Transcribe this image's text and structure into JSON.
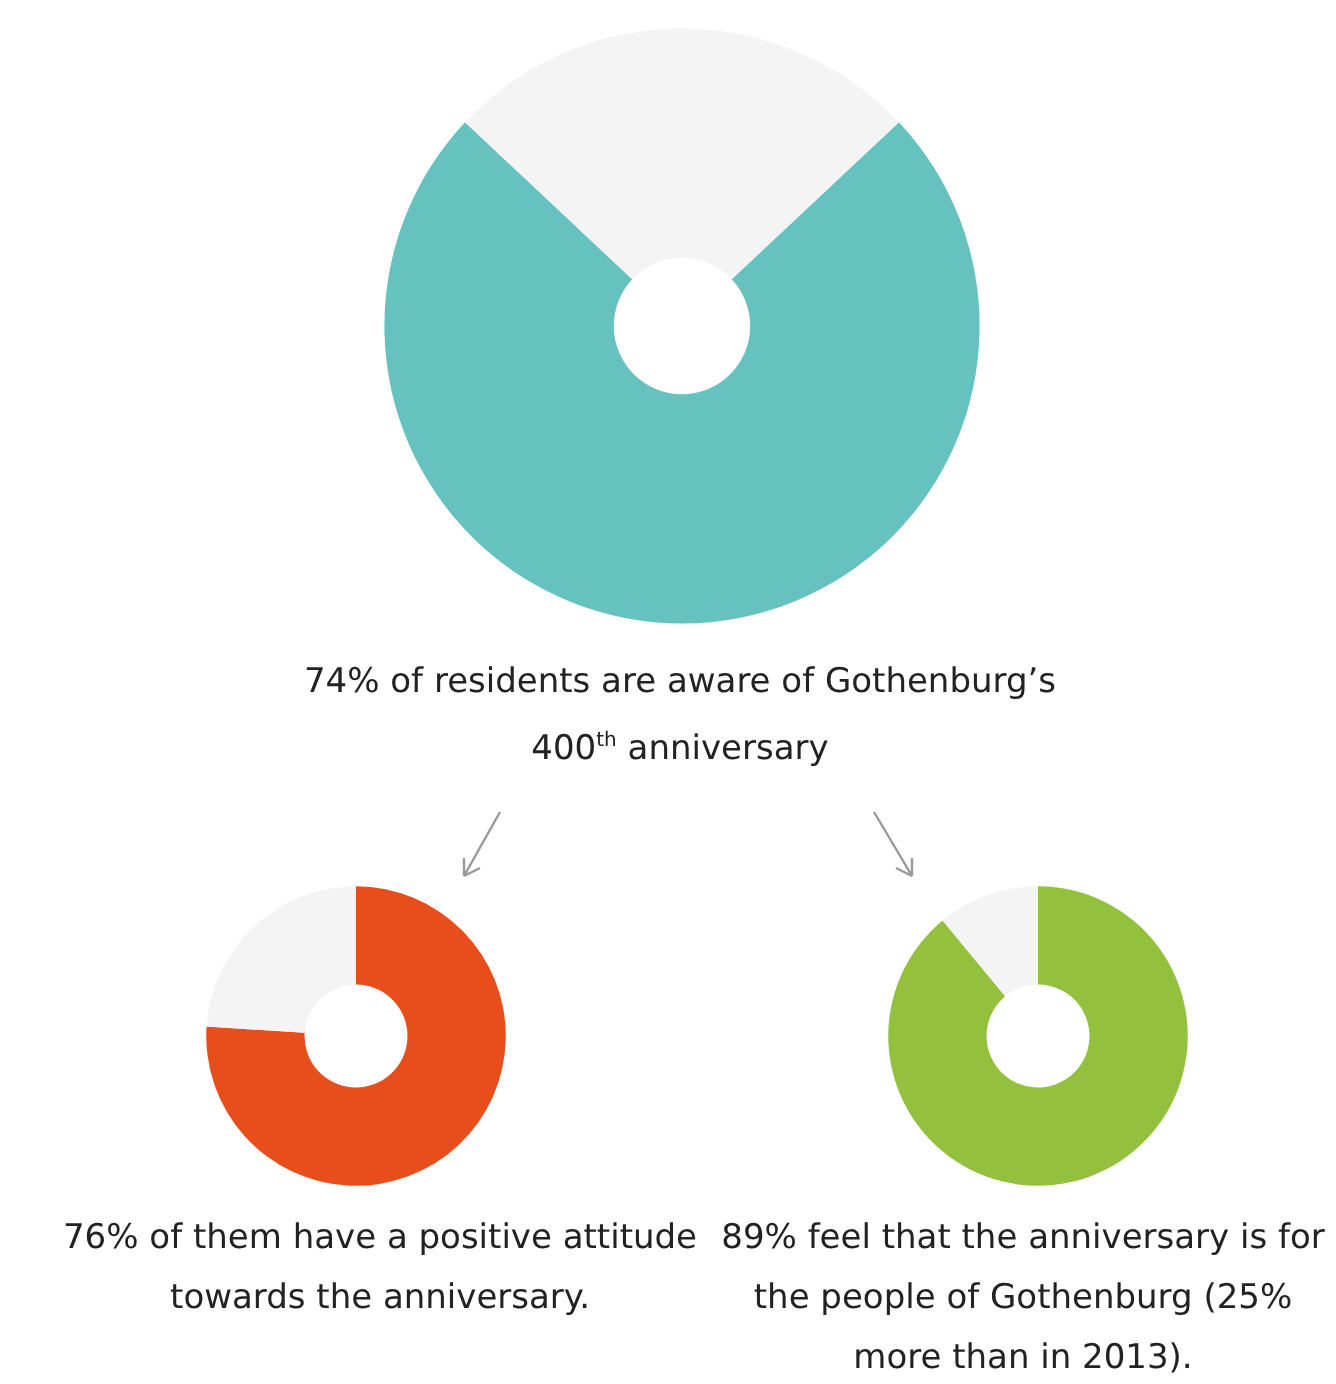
{
  "chart_data": [
    {
      "type": "donut",
      "title": "74% of residents are aware of Gothenburg’s 400$^{th}$ anniversary",
      "categories": [
        null,
        null
      ],
      "values": [
        74,
        26
      ],
      "colors": [
        "#66c2bf",
        "#f4f4f4"
      ]
    },
    {
      "type": "donut",
      "title": "76% of them have a positive attitude towards the anniversary.",
      "categories": [
        null,
        null
      ],
      "values": [
        76,
        24
      ],
      "colors": [
        "#e84e1b",
        "#f4f4f4"
      ]
    },
    {
      "type": "donut",
      "title": "89% feel that the anniversary is for the people of Gothenburg (25% more than in 2013).",
      "categories": [
        null,
        null
      ],
      "values": [
        89,
        11
      ],
      "colors": [
        "#93c13d",
        "#f4f4f4"
      ]
    }
  ]
}
